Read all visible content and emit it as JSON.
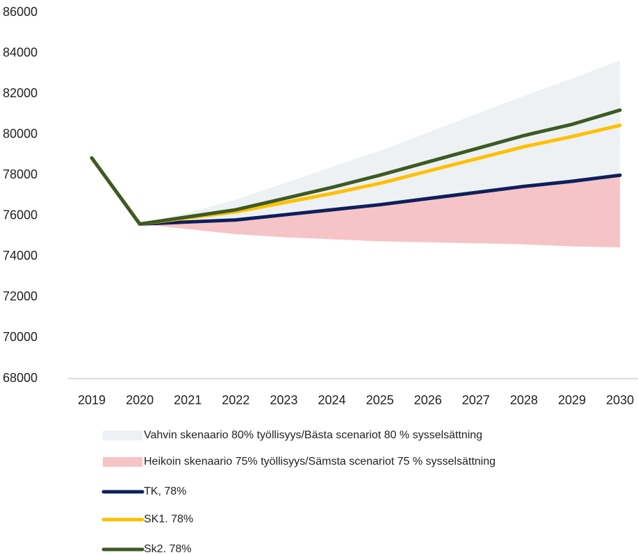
{
  "chart_data": {
    "type": "line",
    "categories": [
      "2019",
      "2020",
      "2021",
      "2022",
      "2023",
      "2024",
      "2025",
      "2026",
      "2027",
      "2028",
      "2029",
      "2030"
    ],
    "ylim": [
      68000,
      86000
    ],
    "yticks": [
      68000,
      70000,
      72000,
      74000,
      76000,
      78000,
      80000,
      82000,
      84000,
      86000
    ],
    "areas": [
      {
        "name": "Vahvin skenaario 80% työllisyys/Bästa scenariot 80 % sysselsättning",
        "color": "#edf1f3",
        "values": [
          null,
          75600,
          76150,
          76800,
          77600,
          78400,
          79200,
          80100,
          81000,
          81900,
          82750,
          83650
        ]
      },
      {
        "name": "Heikoin skenaario 75% työllisyys/Sämsta scenariot 75 % sysselsättning",
        "color": "#f6c4c6",
        "values": [
          null,
          75600,
          75350,
          75100,
          74950,
          74850,
          74750,
          74700,
          74650,
          74600,
          74500,
          74450
        ]
      }
    ],
    "series": [
      {
        "name": "TK, 78%",
        "color": "#0d1f5c",
        "values": [
          78850,
          75600,
          75700,
          75800,
          76050,
          76300,
          76550,
          76850,
          77150,
          77450,
          77700,
          78000
        ]
      },
      {
        "name": "SK1. 78%",
        "color": "#ffc000",
        "values": [
          78850,
          75600,
          75900,
          76200,
          76650,
          77100,
          77600,
          78200,
          78800,
          79400,
          79900,
          80450
        ]
      },
      {
        "name": "Sk2. 78%",
        "color": "#3d5a22",
        "values": [
          78850,
          75600,
          75950,
          76300,
          76850,
          77400,
          78000,
          78650,
          79300,
          79950,
          80500,
          81200
        ]
      }
    ]
  }
}
